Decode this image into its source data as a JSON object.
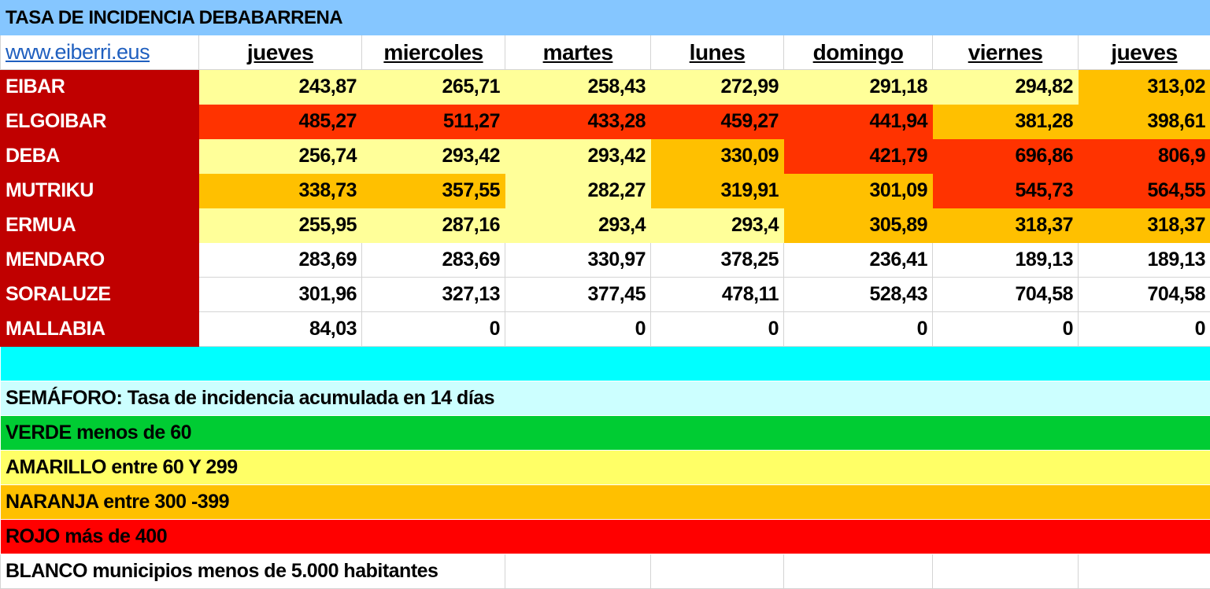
{
  "title": "TASA DE INCIDENCIA DEBABARRENA",
  "link": "www.eiberri.eus",
  "days": [
    "jueves",
    "miercoles",
    "martes",
    "lunes",
    "domingo",
    "viernes",
    "jueves"
  ],
  "colors": {
    "y": "#FFFF99",
    "o": "#FFC000",
    "r": "#FF3300",
    "w": "#FFFFFF"
  },
  "rows": [
    {
      "town": "EIBAR",
      "values": [
        "243,87",
        "265,71",
        "258,43",
        "272,99",
        "291,18",
        "294,82",
        "313,02"
      ],
      "levels": [
        "y",
        "y",
        "y",
        "y",
        "y",
        "y",
        "o"
      ]
    },
    {
      "town": "ELGOIBAR",
      "values": [
        "485,27",
        "511,27",
        "433,28",
        "459,27",
        "441,94",
        "381,28",
        "398,61"
      ],
      "levels": [
        "r",
        "r",
        "r",
        "r",
        "r",
        "o",
        "o"
      ]
    },
    {
      "town": "DEBA",
      "values": [
        "256,74",
        "293,42",
        "293,42",
        "330,09",
        "421,79",
        "696,86",
        "806,9"
      ],
      "levels": [
        "y",
        "y",
        "y",
        "o",
        "r",
        "r",
        "r"
      ]
    },
    {
      "town": "MUTRIKU",
      "values": [
        "338,73",
        "357,55",
        "282,27",
        "319,91",
        "301,09",
        "545,73",
        "564,55"
      ],
      "levels": [
        "o",
        "o",
        "y",
        "o",
        "o",
        "r",
        "r"
      ]
    },
    {
      "town": "ERMUA",
      "values": [
        "255,95",
        "287,16",
        "293,4",
        "293,4",
        "305,89",
        "318,37",
        "318,37"
      ],
      "levels": [
        "y",
        "y",
        "y",
        "y",
        "o",
        "o",
        "o"
      ]
    },
    {
      "town": "MENDARO",
      "values": [
        "283,69",
        "283,69",
        "330,97",
        "378,25",
        "236,41",
        "189,13",
        "189,13"
      ],
      "levels": [
        "w",
        "w",
        "w",
        "w",
        "w",
        "w",
        "w"
      ]
    },
    {
      "town": "SORALUZE",
      "values": [
        "301,96",
        "327,13",
        "377,45",
        "478,11",
        "528,43",
        "704,58",
        "704,58"
      ],
      "levels": [
        "w",
        "w",
        "w",
        "w",
        "w",
        "w",
        "w"
      ]
    },
    {
      "town": "MALLABIA",
      "values": [
        "84,03",
        "0",
        "0",
        "0",
        "0",
        "0",
        "0"
      ],
      "levels": [
        "w",
        "w",
        "w",
        "w",
        "w",
        "w",
        "w"
      ]
    }
  ],
  "legend": [
    {
      "text": "SEMÁFORO:  Tasa de incidencia acumulada en 14 días",
      "color": "#CCFFFF"
    },
    {
      "text": "VERDE menos de 60",
      "color": "#00CC33"
    },
    {
      "text": "AMARILLO entre 60 Y 299",
      "color": "#FFFF66"
    },
    {
      "text": "NARANJA entre 300 -399",
      "color": "#FFC000"
    },
    {
      "text": "ROJO más de 400",
      "color": "#FF0000"
    },
    {
      "text": "BLANCO municipios menos de 5.000 habitantes",
      "color": "#FFFFFF"
    }
  ],
  "spacer_color": "#00FFFF"
}
